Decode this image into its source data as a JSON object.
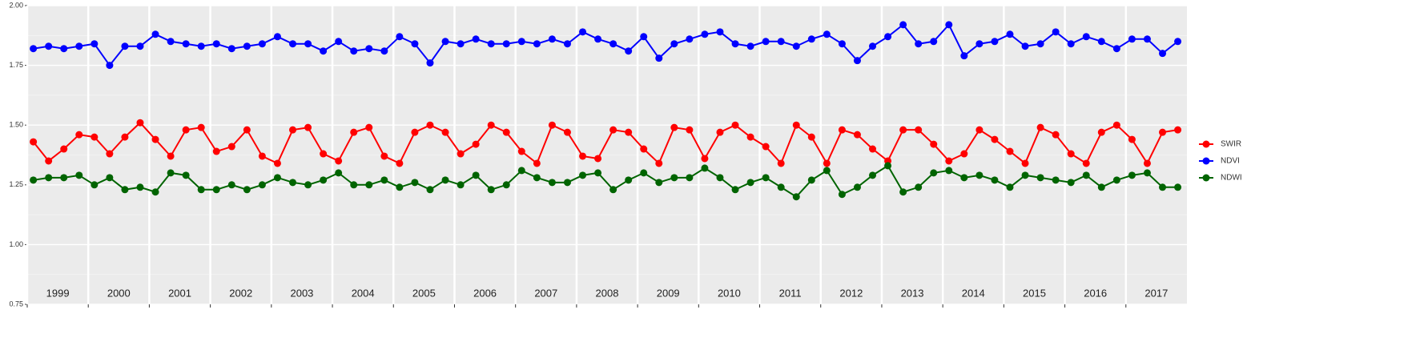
{
  "chart_data": {
    "type": "line",
    "x": [
      1999.1,
      1999.35,
      1999.6,
      1999.85,
      2000.1,
      2000.35,
      2000.6,
      2000.85,
      2001.1,
      2001.35,
      2001.6,
      2001.85,
      2002.1,
      2002.35,
      2002.6,
      2002.85,
      2003.1,
      2003.35,
      2003.6,
      2003.85,
      2004.1,
      2004.35,
      2004.6,
      2004.85,
      2005.1,
      2005.35,
      2005.6,
      2005.85,
      2006.1,
      2006.35,
      2006.6,
      2006.85,
      2007.1,
      2007.35,
      2007.6,
      2007.85,
      2008.1,
      2008.35,
      2008.6,
      2008.85,
      2009.1,
      2009.35,
      2009.6,
      2009.85,
      2010.1,
      2010.35,
      2010.6,
      2010.85,
      2011.1,
      2011.35,
      2011.6,
      2011.85,
      2012.1,
      2012.35,
      2012.6,
      2012.85,
      2013.1,
      2013.35,
      2013.6,
      2013.85,
      2014.1,
      2014.35,
      2014.6,
      2014.85,
      2015.1,
      2015.35,
      2015.6,
      2015.85,
      2016.1,
      2016.35,
      2016.6,
      2016.85,
      2017.1,
      2017.35,
      2017.6,
      2017.85
    ],
    "series": [
      {
        "name": "SWIR",
        "color": "#ff0000",
        "values": [
          1.43,
          1.35,
          1.4,
          1.46,
          1.45,
          1.38,
          1.45,
          1.51,
          1.44,
          1.37,
          1.48,
          1.49,
          1.39,
          1.41,
          1.48,
          1.37,
          1.34,
          1.48,
          1.49,
          1.38,
          1.35,
          1.47,
          1.49,
          1.37,
          1.34,
          1.47,
          1.5,
          1.47,
          1.38,
          1.42,
          1.5,
          1.47,
          1.39,
          1.34,
          1.5,
          1.47,
          1.37,
          1.36,
          1.48,
          1.47,
          1.4,
          1.34,
          1.49,
          1.48,
          1.36,
          1.47,
          1.5,
          1.45,
          1.41,
          1.34,
          1.5,
          1.45,
          1.34,
          1.48,
          1.46,
          1.4,
          1.35,
          1.48,
          1.48,
          1.42,
          1.35,
          1.38,
          1.48,
          1.44,
          1.39,
          1.34,
          1.49,
          1.46,
          1.38,
          1.34,
          1.47,
          1.5,
          1.44,
          1.34,
          1.47,
          1.48
        ]
      },
      {
        "name": "NDVI",
        "color": "#0000ff",
        "values": [
          1.82,
          1.83,
          1.82,
          1.83,
          1.84,
          1.75,
          1.83,
          1.83,
          1.88,
          1.85,
          1.84,
          1.83,
          1.84,
          1.82,
          1.83,
          1.84,
          1.87,
          1.84,
          1.84,
          1.81,
          1.85,
          1.81,
          1.82,
          1.81,
          1.87,
          1.84,
          1.76,
          1.85,
          1.84,
          1.86,
          1.84,
          1.84,
          1.85,
          1.84,
          1.86,
          1.84,
          1.89,
          1.86,
          1.84,
          1.81,
          1.87,
          1.78,
          1.84,
          1.86,
          1.88,
          1.89,
          1.84,
          1.83,
          1.85,
          1.85,
          1.83,
          1.86,
          1.88,
          1.84,
          1.77,
          1.83,
          1.87,
          1.92,
          1.84,
          1.85,
          1.92,
          1.79,
          1.84,
          1.85,
          1.88,
          1.83,
          1.84,
          1.89,
          1.84,
          1.87,
          1.85,
          1.82,
          1.86,
          1.86,
          1.8,
          1.85
        ]
      },
      {
        "name": "NDWI",
        "color": "#006400",
        "values": [
          1.27,
          1.28,
          1.28,
          1.29,
          1.25,
          1.28,
          1.23,
          1.24,
          1.22,
          1.3,
          1.29,
          1.23,
          1.23,
          1.25,
          1.23,
          1.25,
          1.28,
          1.26,
          1.25,
          1.27,
          1.3,
          1.25,
          1.25,
          1.27,
          1.24,
          1.26,
          1.23,
          1.27,
          1.25,
          1.29,
          1.23,
          1.25,
          1.31,
          1.28,
          1.26,
          1.26,
          1.29,
          1.3,
          1.23,
          1.27,
          1.3,
          1.26,
          1.28,
          1.28,
          1.32,
          1.28,
          1.23,
          1.26,
          1.28,
          1.24,
          1.2,
          1.27,
          1.31,
          1.21,
          1.24,
          1.29,
          1.33,
          1.22,
          1.24,
          1.3,
          1.31,
          1.28,
          1.29,
          1.27,
          1.24,
          1.29,
          1.28,
          1.27,
          1.26,
          1.29,
          1.24,
          1.27,
          1.29,
          1.3,
          1.24,
          1.24
        ]
      }
    ],
    "xlim": [
      1999,
      2018
    ],
    "xticks": [
      1999,
      2000,
      2001,
      2002,
      2003,
      2004,
      2005,
      2006,
      2007,
      2008,
      2009,
      2010,
      2011,
      2012,
      2013,
      2014,
      2015,
      2016,
      2017
    ],
    "ylim": [
      0.75,
      2.0
    ],
    "yticks": [
      {
        "value": 0.75,
        "label": "0.75"
      },
      {
        "value": 1.0,
        "label": "1.00"
      },
      {
        "value": 1.25,
        "label": "1.25"
      },
      {
        "value": 1.5,
        "label": "1.50"
      },
      {
        "value": 1.75,
        "label": "1.75"
      },
      {
        "value": 2.0,
        "label": "2.00"
      }
    ],
    "yminor": [
      0.875,
      1.125,
      1.375,
      1.625,
      1.875
    ],
    "grid": true,
    "legend": "right"
  }
}
